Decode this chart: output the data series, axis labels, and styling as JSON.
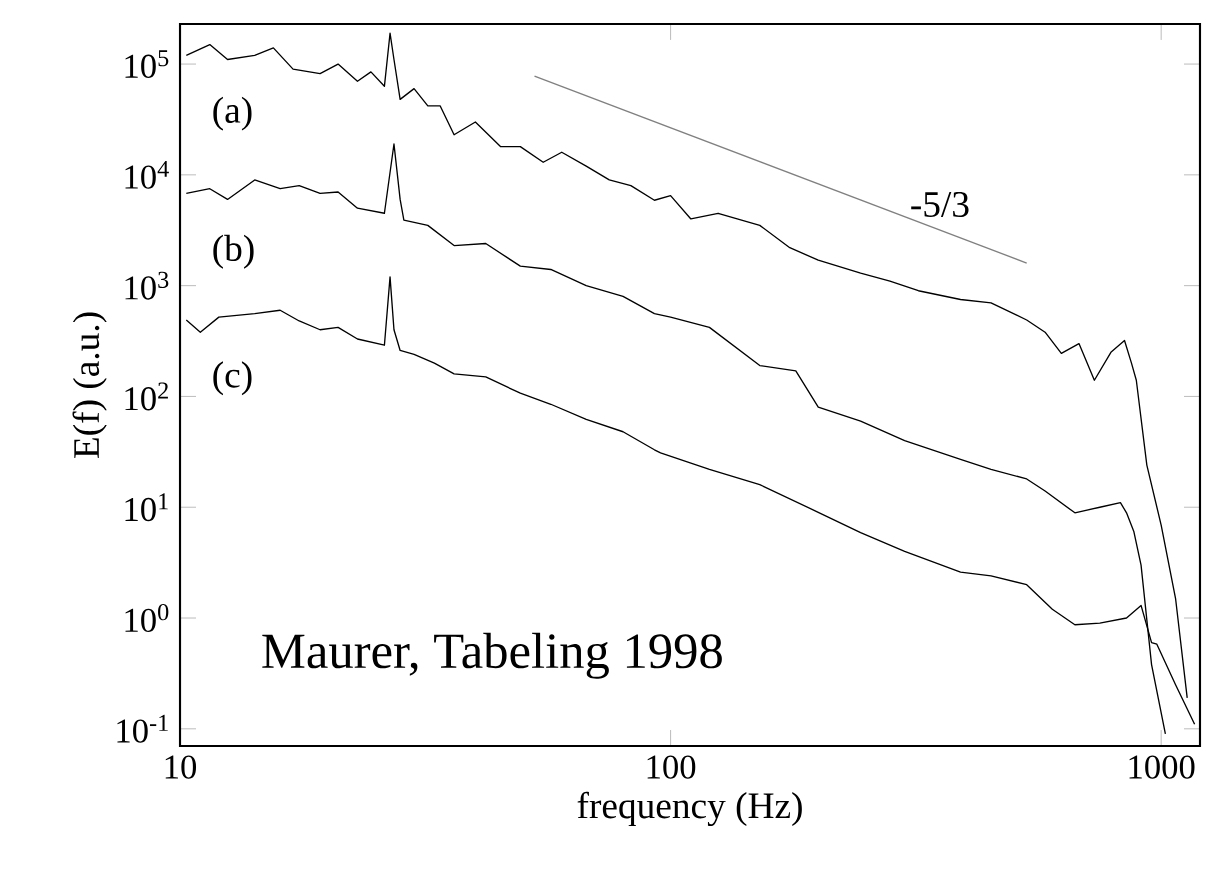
{
  "chart_data": {
    "type": "line",
    "xlabel": "frequency (Hz)",
    "ylabel": "E(f) (a.u.)",
    "log": "xy",
    "xlim": [
      10,
      1200
    ],
    "ylim": [
      0.07,
      230000
    ],
    "xticks": [
      10,
      100,
      1000
    ],
    "yticks": [
      {
        "value": 0.1,
        "label": "10$^{-1}$"
      },
      {
        "value": 1,
        "label": "10$^{0}$"
      },
      {
        "value": 10,
        "label": "10$^{1}$"
      },
      {
        "value": 100,
        "label": "10$^{2}$"
      },
      {
        "value": 1000,
        "label": "10$^{3}$"
      },
      {
        "value": 10000,
        "label": "10$^{4}$"
      },
      {
        "value": 100000,
        "label": "10$^{5}$"
      }
    ],
    "annotations": [
      "Maurer, Tabeling 1998",
      "-5/3"
    ],
    "series": [
      {
        "name": "(a)",
        "color": "#000000",
        "x": [
          10.3,
          11.5,
          12.5,
          14.2,
          15.5,
          17,
          19.3,
          21,
          23,
          24.5,
          26.1,
          26.8,
          27.3,
          28.1,
          30,
          32,
          33.9,
          36.2,
          40,
          45,
          49.4,
          55,
          60,
          67.3,
          75,
          83,
          92.7,
          100,
          110,
          125,
          152,
          175,
          200,
          244,
          280,
          320,
          390,
          450,
          532,
          580,
          626,
          680,
          731,
          790,
          842,
          870,
          890,
          935,
          1000,
          1070,
          1130
        ],
        "values": [
          120000,
          150000,
          110000,
          120000,
          140000,
          90000,
          82000,
          100000,
          70000,
          85000,
          63000,
          190000,
          110000,
          48000,
          60000,
          42000,
          42000,
          23000,
          30000,
          18000,
          18000,
          13000,
          16000,
          12000,
          9000,
          8000,
          5900,
          6500,
          4000,
          4500,
          3500,
          2200,
          1700,
          1300,
          1100,
          900,
          750,
          700,
          490,
          380,
          245,
          300,
          140,
          250,
          320,
          200,
          140,
          24,
          6.9,
          1.5,
          0.19
        ]
      },
      {
        "name": "(b)",
        "color": "#000000",
        "x": [
          10.3,
          11.5,
          12.5,
          14.2,
          16,
          17.5,
          19.3,
          21,
          23,
          26.1,
          27.3,
          28.1,
          28.6,
          32,
          36.2,
          42,
          49.4,
          57,
          67.3,
          80,
          92.7,
          100,
          120,
          152,
          180,
          200,
          244,
          300,
          390,
          450,
          532,
          580,
          667,
          750,
          826,
          850,
          880,
          910,
          956,
          1020
        ],
        "values": [
          6800,
          7500,
          6000,
          9000,
          7500,
          8000,
          6800,
          7000,
          5000,
          4500,
          19000,
          6000,
          3900,
          3500,
          2300,
          2400,
          1500,
          1400,
          1000,
          800,
          560,
          520,
          420,
          190,
          170,
          80,
          60,
          40,
          27,
          22,
          18,
          14,
          8.9,
          10,
          11,
          8.9,
          6,
          3.0,
          0.38,
          0.09
        ]
      },
      {
        "name": "(c)",
        "color": "#000000",
        "x": [
          10.3,
          11,
          12,
          14.2,
          16,
          17.5,
          19.3,
          21,
          23,
          26.1,
          26.8,
          27.3,
          28.1,
          30,
          33,
          36.2,
          42,
          49.4,
          57,
          67.3,
          80,
          92.7,
          95.4,
          120,
          152,
          200,
          244,
          300,
          390,
          450,
          532,
          600,
          667,
          750,
          850,
          910,
          956,
          980,
          1070,
          1170
        ],
        "values": [
          490,
          380,
          520,
          560,
          600,
          480,
          400,
          420,
          330,
          290,
          1200,
          400,
          260,
          240,
          200,
          160,
          150,
          107,
          85,
          62,
          48,
          33,
          31,
          22,
          16,
          9,
          5.9,
          4,
          2.6,
          2.4,
          2.0,
          1.2,
          0.87,
          0.9,
          1.0,
          1.3,
          0.6,
          0.58,
          0.25,
          0.11
        ]
      },
      {
        "color": "#808080",
        "x": [
          52.8,
          532
        ],
        "values": [
          78000,
          1600
        ]
      }
    ]
  }
}
